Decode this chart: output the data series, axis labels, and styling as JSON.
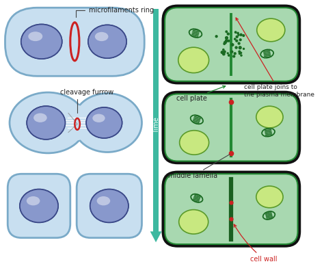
{
  "bg_color": "#ffffff",
  "animal_cell_fill": "#c8dff0",
  "animal_cell_stroke": "#7aaac8",
  "animal_cell_lw": 1.8,
  "nucleus_fill_center": "#8898cc",
  "nucleus_fill_edge": "#5060a8",
  "nucleus_stroke": "#3a4888",
  "plant_cell_bg": "#1a1a1a",
  "plant_cell_fill": "#a8d8b0",
  "plant_cell_border_color": "#228833",
  "organelle_color": "#1a6a22",
  "nucleus_plant_fill": "#c8e880",
  "nucleus_plant_stroke": "#5a9a2a",
  "red_color": "#cc2222",
  "teal_color": "#3db8a0",
  "label_color": "#222222",
  "red_label_color": "#cc2222",
  "time_label": "Time",
  "labels": {
    "microfilaments_ring": "microfilaments ring",
    "cleavage_furrow": "cleavage furrow",
    "cell_plate": "cell plate",
    "cell_plate_joins": "cell plate joins to\nthe plasma membrane",
    "middle_lamella": "middle lamella",
    "cell_wall": "cell wall"
  }
}
